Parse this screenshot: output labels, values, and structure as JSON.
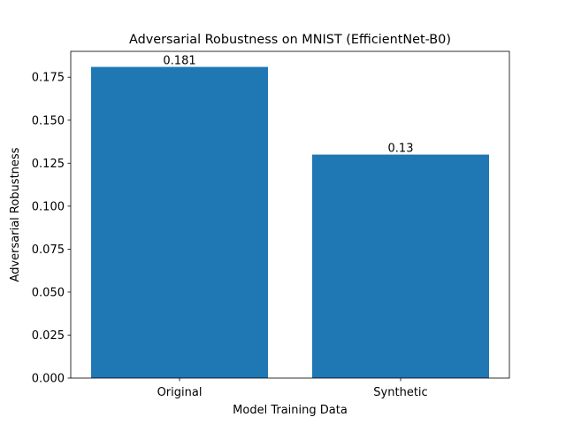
{
  "chart_data": {
    "type": "bar",
    "title": "Adversarial Robustness on MNIST (EfficientNet-B0)",
    "xlabel": "Model Training Data",
    "ylabel": "Adversarial Robustness",
    "categories": [
      "Original",
      "Synthetic"
    ],
    "values": [
      0.181,
      0.13
    ],
    "data_labels": [
      "0.181",
      "0.13"
    ],
    "ylim": [
      0,
      0.19005
    ],
    "yticks": [
      0,
      0.025,
      0.05,
      0.075,
      0.1,
      0.125,
      0.15,
      0.175
    ],
    "ytick_labels": [
      "0.000",
      "0.025",
      "0.050",
      "0.075",
      "0.100",
      "0.125",
      "0.150",
      "0.175"
    ],
    "bar_color": "#1f77b4",
    "grid": false
  }
}
